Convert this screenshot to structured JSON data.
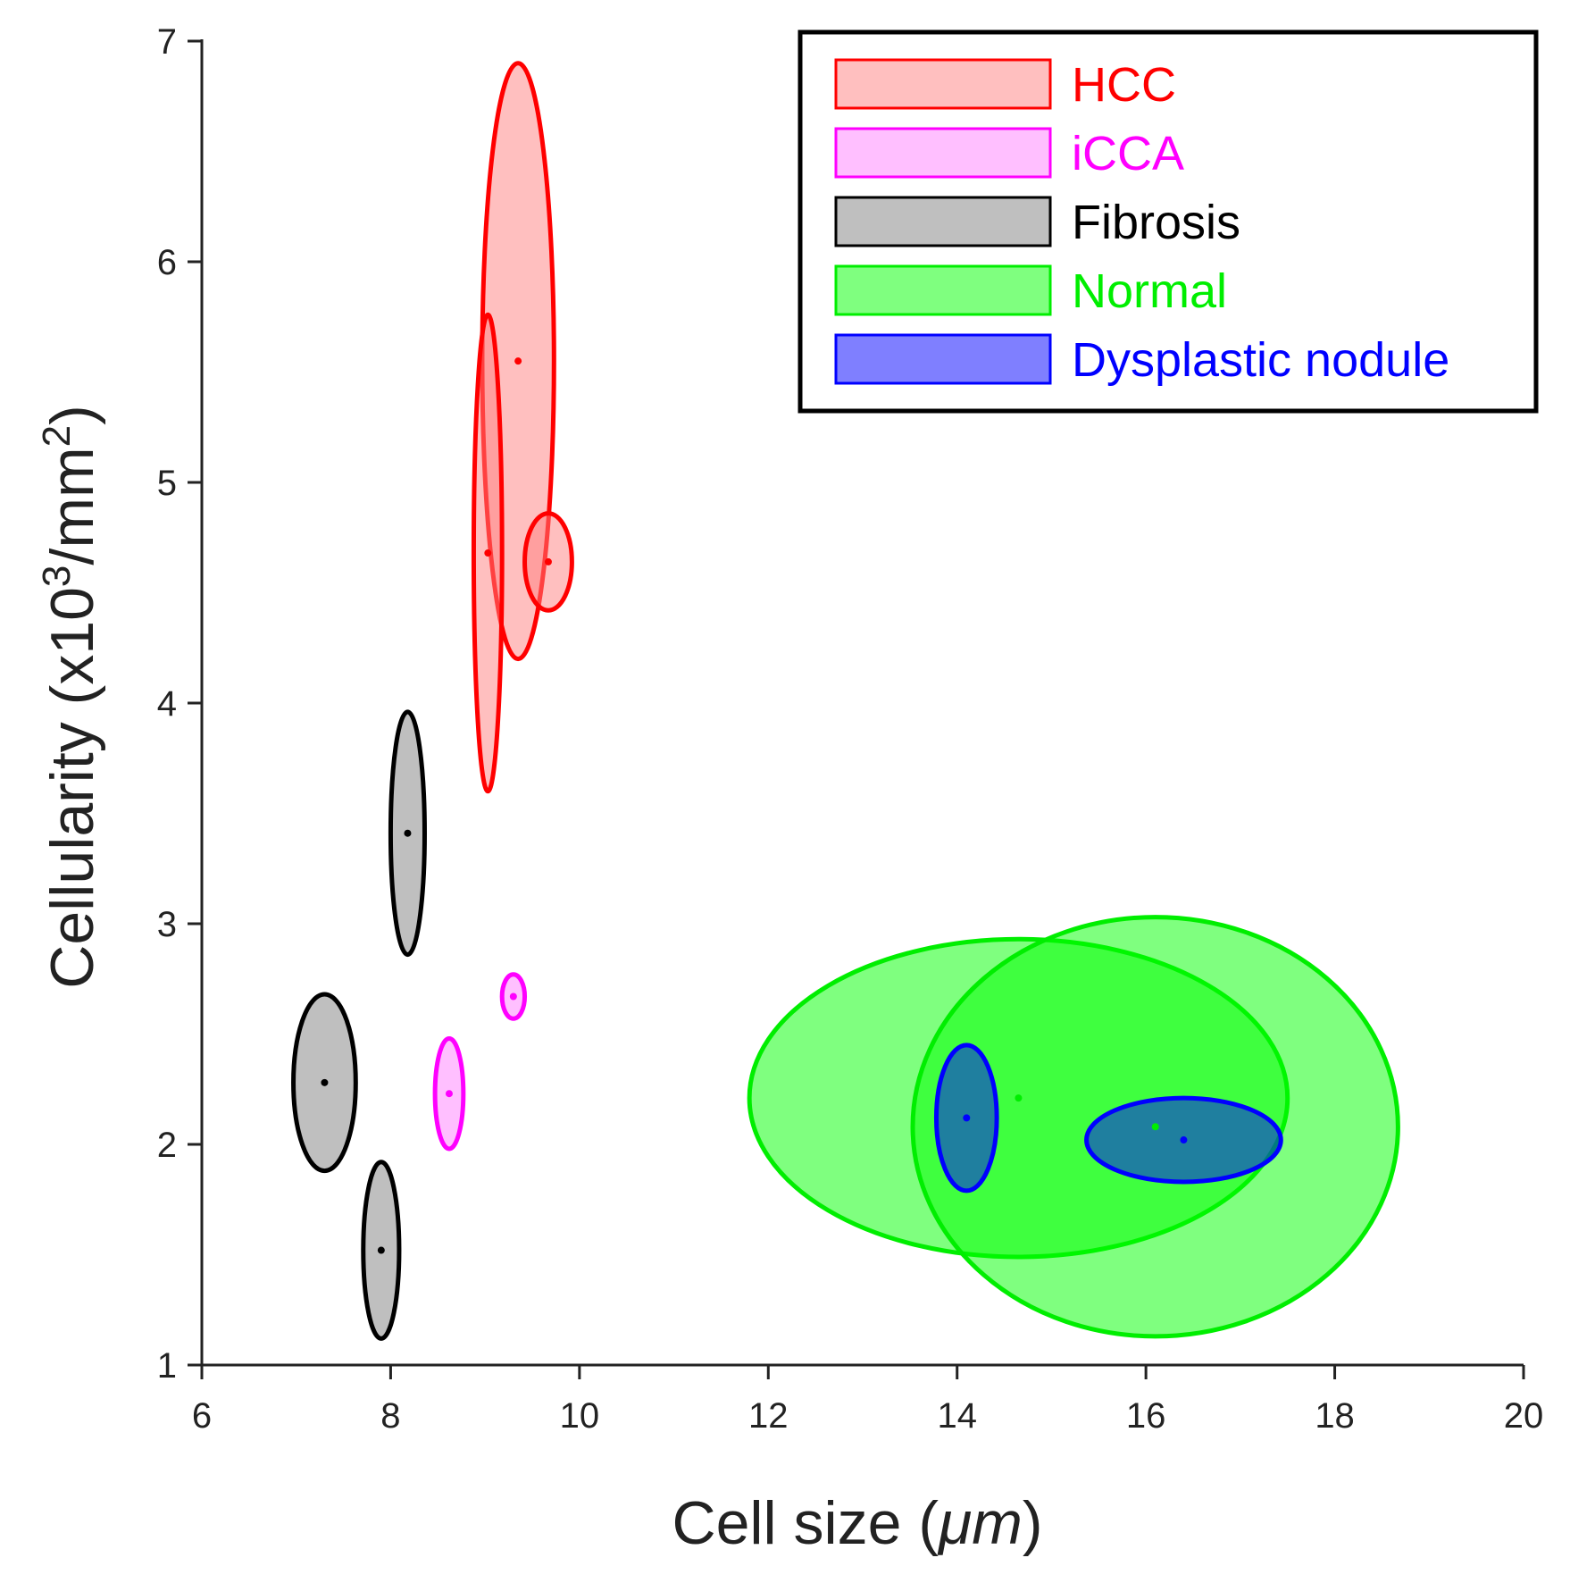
{
  "chart_data": {
    "type": "scatter",
    "title": "",
    "xlabel": "Cell size (",
    "xlabel_unit": "μm",
    "xlabel_close": ")",
    "ylabel_prefix": "Cellularity (x10",
    "ylabel_sup1": "3",
    "ylabel_mid": "/mm",
    "ylabel_sup2": "2",
    "ylabel_close": ")",
    "xlim": [
      6,
      20
    ],
    "ylim": [
      1,
      7
    ],
    "xticks": [
      6,
      8,
      10,
      12,
      14,
      16,
      18,
      20
    ],
    "yticks": [
      1,
      2,
      3,
      4,
      5,
      6,
      7
    ],
    "grid": false,
    "legend_position": "top-right",
    "series": [
      {
        "name": "HCC",
        "fill": "#ff7f7f",
        "stroke": "#ff0000",
        "ellipses": [
          {
            "cx": 9.35,
            "cy": 5.55,
            "rx": 0.38,
            "ry": 1.35
          },
          {
            "cx": 9.03,
            "cy": 4.68,
            "rx": 0.15,
            "ry": 1.08
          },
          {
            "cx": 9.67,
            "cy": 4.64,
            "rx": 0.25,
            "ry": 0.22
          }
        ]
      },
      {
        "name": "iCCA",
        "fill": "#ff80ff",
        "stroke": "#ff00ff",
        "ellipses": [
          {
            "cx": 9.3,
            "cy": 2.67,
            "rx": 0.12,
            "ry": 0.1
          },
          {
            "cx": 8.62,
            "cy": 2.23,
            "rx": 0.15,
            "ry": 0.25
          }
        ]
      },
      {
        "name": "Fibrosis",
        "fill": "#808080",
        "stroke": "#000000",
        "ellipses": [
          {
            "cx": 8.18,
            "cy": 3.41,
            "rx": 0.18,
            "ry": 0.55
          },
          {
            "cx": 7.3,
            "cy": 2.28,
            "rx": 0.33,
            "ry": 0.4
          },
          {
            "cx": 7.9,
            "cy": 1.52,
            "rx": 0.19,
            "ry": 0.4
          }
        ]
      },
      {
        "name": "Normal",
        "fill": "#00ff00",
        "stroke": "#00ee00",
        "ellipses": [
          {
            "cx": 14.65,
            "cy": 2.21,
            "rx": 2.85,
            "ry": 0.72
          },
          {
            "cx": 16.1,
            "cy": 2.08,
            "rx": 2.57,
            "ry": 0.95
          }
        ]
      },
      {
        "name": "Dysplastic nodule",
        "fill": "#0000ff",
        "stroke": "#0000ff",
        "ellipses": [
          {
            "cx": 14.1,
            "cy": 2.12,
            "rx": 0.32,
            "ry": 0.33
          },
          {
            "cx": 16.4,
            "cy": 2.02,
            "rx": 1.03,
            "ry": 0.19
          }
        ]
      }
    ]
  }
}
